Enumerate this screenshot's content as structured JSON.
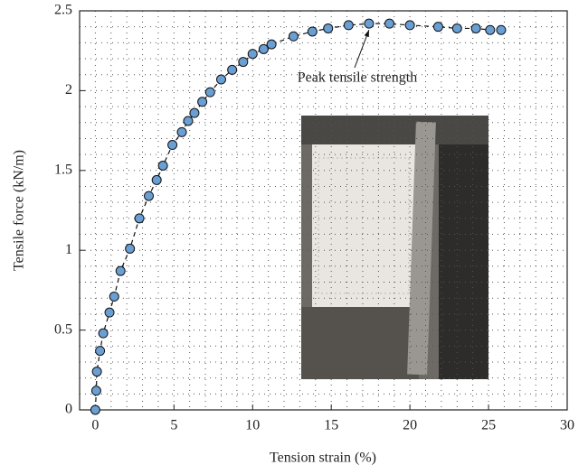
{
  "chart_data": {
    "type": "line",
    "x_label": "Tension strain (%)",
    "y_label": "Tensile force (kN/m)",
    "annotation": "Peak tensile strength",
    "x": [
      0,
      0.06,
      0.1,
      0.3,
      0.5,
      0.9,
      1.2,
      1.6,
      2.2,
      2.8,
      3.4,
      3.9,
      4.3,
      4.9,
      5.5,
      5.9,
      6.3,
      6.8,
      7.3,
      8.0,
      8.7,
      9.4,
      10.0,
      10.7,
      11.2,
      12.6,
      13.8,
      14.8,
      16.1,
      17.4,
      18.7,
      20.0,
      21.8,
      23.0,
      24.2,
      25.1,
      25.8
    ],
    "values": [
      0,
      0.12,
      0.24,
      0.37,
      0.48,
      0.61,
      0.71,
      0.87,
      1.01,
      1.2,
      1.34,
      1.44,
      1.53,
      1.66,
      1.74,
      1.81,
      1.86,
      1.93,
      1.99,
      2.07,
      2.13,
      2.18,
      2.23,
      2.26,
      2.29,
      2.34,
      2.37,
      2.39,
      2.41,
      2.42,
      2.42,
      2.41,
      2.4,
      2.39,
      2.39,
      2.38,
      2.38
    ],
    "color": "#6a9fd4",
    "xlim": [
      -1,
      30
    ],
    "xticks": [
      0,
      5,
      10,
      15,
      20,
      25,
      30
    ],
    "ylim": [
      0,
      2.5
    ],
    "yticks": [
      0,
      0.5,
      1,
      1.5,
      2,
      2.5
    ],
    "grid": true
  }
}
